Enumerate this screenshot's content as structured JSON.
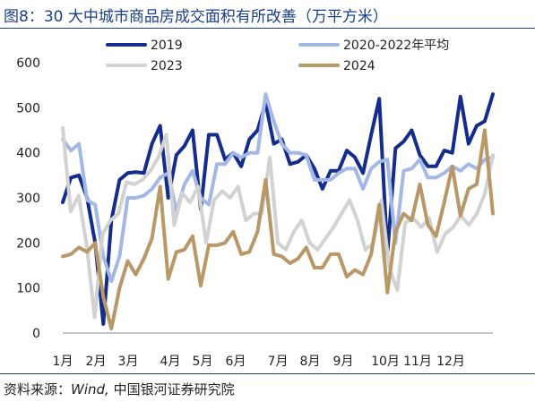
{
  "title": "图8：30 大中城市商品房成交面积有所改善（万平方米）",
  "source": {
    "prefix": "资料来源：",
    "italic": "Wind,",
    "suffix": " 中国银河证券研究院"
  },
  "chart_data": {
    "type": "line",
    "ylim": [
      0,
      600
    ],
    "yticks": [
      0,
      100,
      200,
      300,
      400,
      500,
      600
    ],
    "x_labels": [
      "1月",
      "2月",
      "3月",
      "4月",
      "5月",
      "6月",
      "7月",
      "8月",
      "9月",
      "10月",
      "11月",
      "12月"
    ],
    "legend": "top",
    "series": [
      {
        "name": "2019",
        "color": "#142c8c",
        "width": 4,
        "values": [
          290,
          345,
          350,
          300,
          200,
          20,
          250,
          340,
          355,
          357,
          355,
          420,
          460,
          300,
          395,
          415,
          450,
          275,
          440,
          440,
          385,
          400,
          370,
          430,
          450,
          510,
          420,
          430,
          375,
          380,
          395,
          365,
          320,
          360,
          360,
          405,
          390,
          355,
          440,
          520,
          175,
          410,
          425,
          450,
          395,
          370,
          370,
          405,
          400,
          525,
          420,
          460,
          470,
          530
        ]
      },
      {
        "name": "2020-2022年平均",
        "color": "#a4b8e6",
        "width": 4,
        "values": [
          430,
          405,
          420,
          295,
          285,
          170,
          115,
          170,
          300,
          300,
          305,
          320,
          345,
          355,
          270,
          330,
          360,
          300,
          285,
          375,
          375,
          400,
          390,
          400,
          400,
          530,
          470,
          420,
          400,
          400,
          395,
          340,
          340,
          340,
          355,
          365,
          365,
          320,
          365,
          380,
          385,
          200,
          360,
          365,
          385,
          345,
          345,
          355,
          370,
          360,
          375,
          365,
          385,
          390
        ]
      },
      {
        "name": "2023",
        "color": "#d2d2d2",
        "width": 4,
        "values": [
          455,
          270,
          305,
          195,
          35,
          220,
          250,
          265,
          335,
          330,
          340,
          360,
          390,
          440,
          240,
          310,
          290,
          325,
          200,
          295,
          315,
          300,
          325,
          250,
          265,
          265,
          390,
          200,
          185,
          225,
          250,
          200,
          185,
          210,
          235,
          265,
          295,
          250,
          185,
          200,
          295,
          145,
          95,
          245,
          255,
          235,
          255,
          180,
          220,
          235,
          260,
          240,
          265,
          310,
          395
        ]
      },
      {
        "name": "2024",
        "color": "#b99867",
        "width": 4,
        "values": [
          170,
          175,
          190,
          180,
          200,
          80,
          10,
          100,
          160,
          130,
          165,
          210,
          325,
          120,
          180,
          185,
          215,
          105,
          195,
          195,
          200,
          225,
          175,
          180,
          225,
          340,
          175,
          170,
          155,
          165,
          190,
          145,
          145,
          175,
          175,
          125,
          140,
          130,
          175,
          285,
          90,
          225,
          265,
          250,
          330,
          240,
          215,
          290,
          370,
          260,
          320,
          330,
          450,
          265
        ]
      }
    ]
  }
}
